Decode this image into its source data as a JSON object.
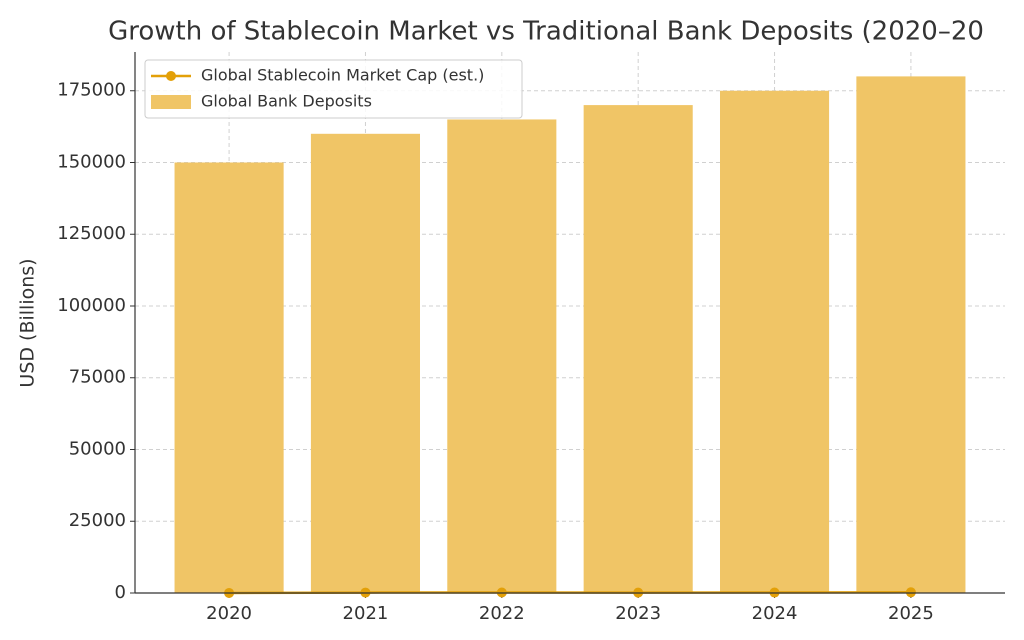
{
  "chart_data": {
    "type": "bar",
    "title": "Growth of Stablecoin Market vs Traditional Bank Deposits (2020–20",
    "y_label": "USD (Billions)",
    "categories": [
      "2020",
      "2021",
      "2022",
      "2023",
      "2024",
      "2025"
    ],
    "series": [
      {
        "name": "Global Stablecoin Market Cap (est.)",
        "type": "line",
        "color": "#e3a008",
        "values": [
          20,
          150,
          180,
          140,
          160,
          250
        ]
      },
      {
        "name": "Global Bank Deposits",
        "type": "bar",
        "color": "#f0c566",
        "values": [
          150000,
          160000,
          165000,
          170000,
          175000,
          180000
        ]
      }
    ],
    "ylim": [
      0,
      188500
    ],
    "yticks": [
      0,
      25000,
      50000,
      75000,
      100000,
      125000,
      150000,
      175000
    ],
    "grid": true,
    "legend": "upper-left"
  }
}
